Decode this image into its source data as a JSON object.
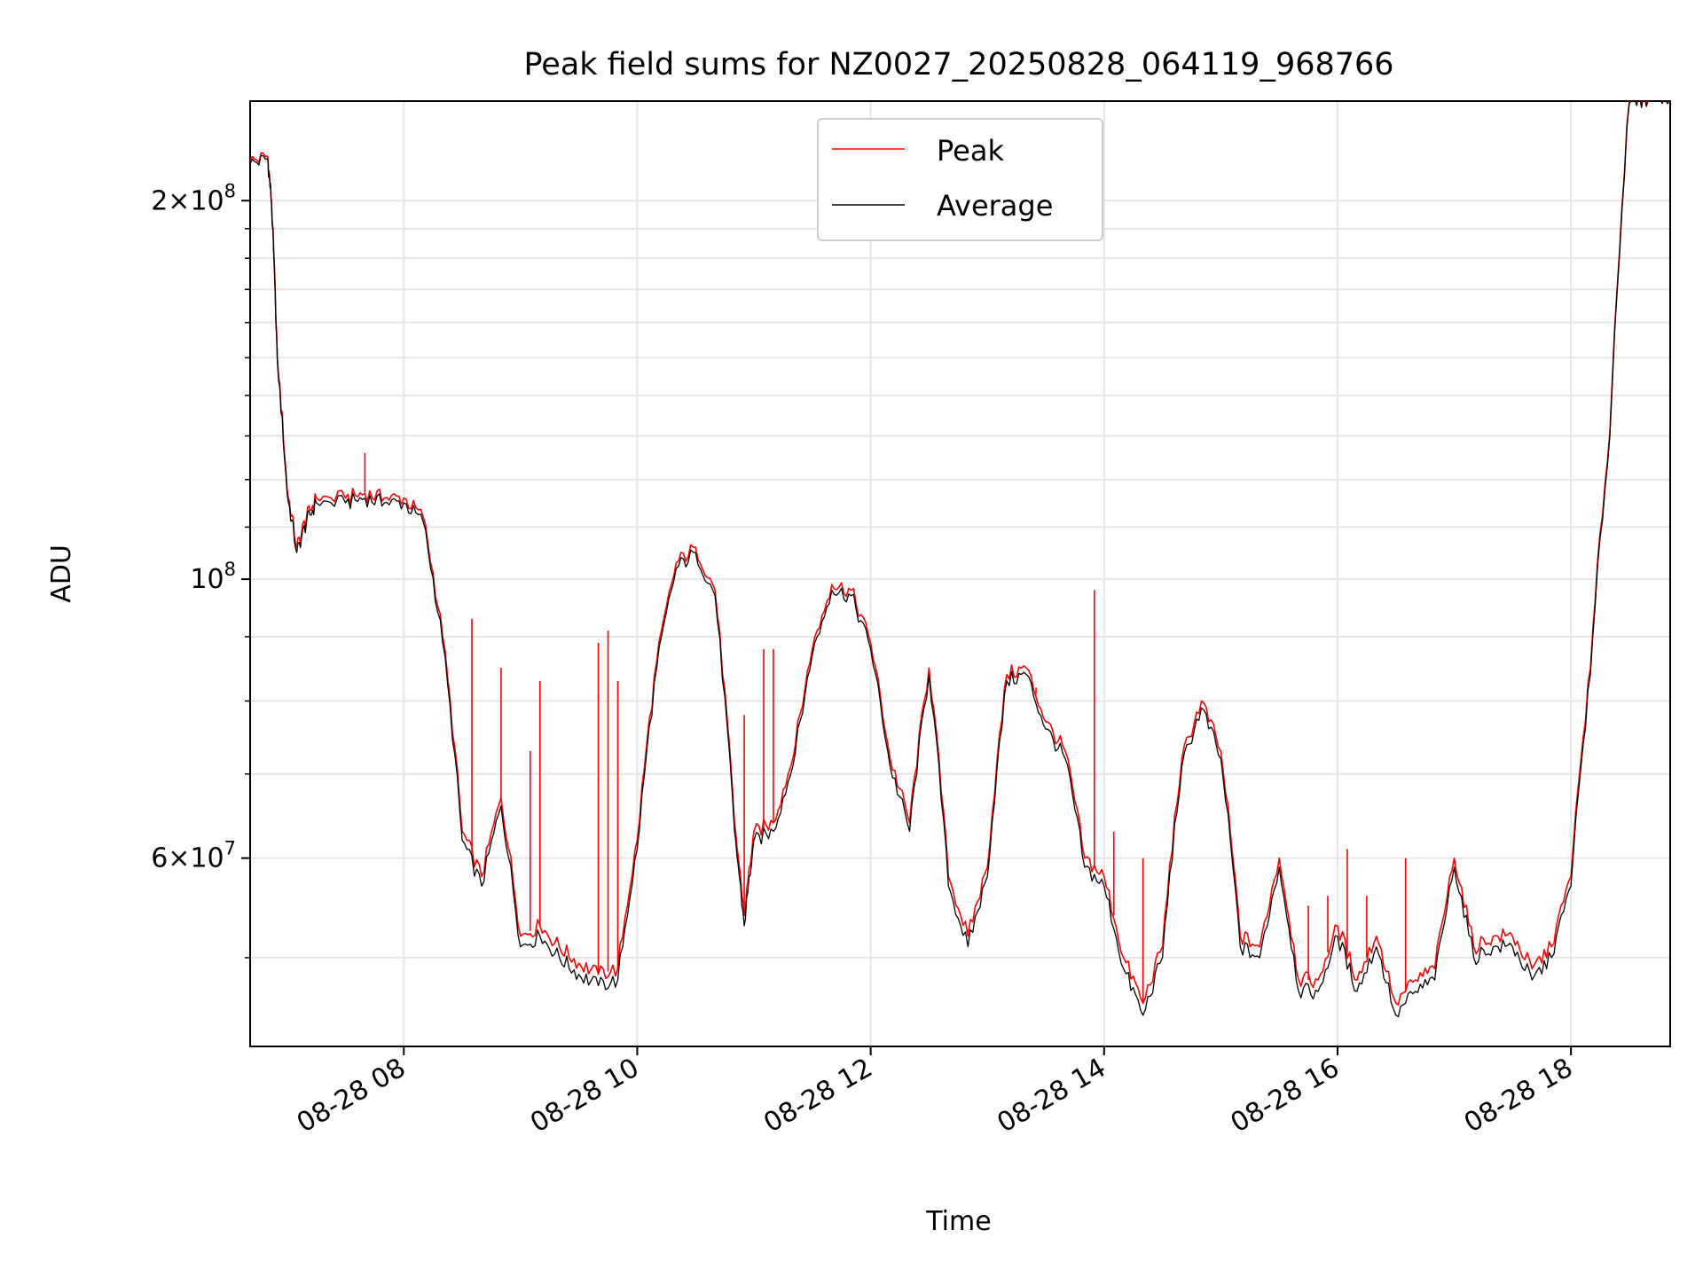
{
  "chart_data": {
    "type": "line",
    "title": "Peak field sums for NZ0027_20250828_064119_968766",
    "xlabel": "Time",
    "ylabel": "ADU",
    "yscale": "log",
    "ylim": [
      42500000,
      240000000
    ],
    "xlim": [
      "2025-08-28 06:41",
      "2025-08-28 18:51"
    ],
    "x_ticks": [
      "08-28 08",
      "08-28 10",
      "08-28 12",
      "08-28 14",
      "08-28 16",
      "08-28 18"
    ],
    "y_ticks": [
      "2×10^8",
      "10^8",
      "6×10^7"
    ],
    "grid": true,
    "legend": "upper center",
    "series": [
      {
        "name": "Peak",
        "color": "#ff0000",
        "x": [
          "06:41",
          "06:50",
          "06:52",
          "06:55",
          "07:00",
          "07:05",
          "07:10",
          "07:15",
          "07:30",
          "07:40",
          "07:50",
          "08:00",
          "08:10",
          "08:20",
          "08:30",
          "08:40",
          "08:50",
          "09:00",
          "09:10",
          "09:20",
          "09:30",
          "09:40",
          "09:50",
          "10:00",
          "10:10",
          "10:20",
          "10:30",
          "10:40",
          "10:50",
          "10:55",
          "11:00",
          "11:10",
          "11:20",
          "11:30",
          "11:40",
          "11:50",
          "12:00",
          "12:10",
          "12:20",
          "12:30",
          "12:40",
          "12:50",
          "13:00",
          "13:10",
          "13:20",
          "13:30",
          "13:40",
          "13:50",
          "14:00",
          "14:10",
          "14:20",
          "14:30",
          "14:40",
          "14:50",
          "15:00",
          "15:10",
          "15:20",
          "15:30",
          "15:40",
          "15:50",
          "16:00",
          "16:10",
          "16:20",
          "16:30",
          "16:40",
          "16:50",
          "17:00",
          "17:10",
          "17:20",
          "17:30",
          "17:40",
          "17:50",
          "18:00",
          "18:10",
          "18:20",
          "18:30",
          "18:40",
          "18:51"
        ],
        "y": [
          215000000,
          217000000,
          200000000,
          150000000,
          118000000,
          106000000,
          112000000,
          116000000,
          116000000,
          117000000,
          116000000,
          116000000,
          112000000,
          90000000,
          63000000,
          58000000,
          67000000,
          52000000,
          53000000,
          51000000,
          49500000,
          48500000,
          49000000,
          62000000,
          86000000,
          103000000,
          106000000,
          98000000,
          64000000,
          54000000,
          63000000,
          64000000,
          72000000,
          88000000,
          99000000,
          98000000,
          89000000,
          72000000,
          64000000,
          85000000,
          58000000,
          52000000,
          59000000,
          84000000,
          85000000,
          77000000,
          73000000,
          60000000,
          58000000,
          50000000,
          46000000,
          51000000,
          72000000,
          80000000,
          73000000,
          52000000,
          51000000,
          60000000,
          48000000,
          48000000,
          53000000,
          48000000,
          52000000,
          46000000,
          48000000,
          49000000,
          60000000,
          51000000,
          52000000,
          52000000,
          49000000,
          51000000,
          58000000,
          85000000,
          131000000,
          240000000,
          242000000,
          242000000
        ],
        "spikes": [
          [
            "07:40",
            126000000
          ],
          [
            "08:35",
            93000000
          ],
          [
            "08:50",
            85000000
          ],
          [
            "09:05",
            73000000
          ],
          [
            "09:10",
            83000000
          ],
          [
            "09:40",
            89000000
          ],
          [
            "09:45",
            91000000
          ],
          [
            "09:50",
            83000000
          ],
          [
            "10:55",
            78000000
          ],
          [
            "11:05",
            88000000
          ],
          [
            "11:10",
            88000000
          ],
          [
            "13:25",
            82000000
          ],
          [
            "13:55",
            98000000
          ],
          [
            "14:05",
            63000000
          ],
          [
            "14:20",
            60000000
          ],
          [
            "15:45",
            55000000
          ],
          [
            "15:55",
            56000000
          ],
          [
            "16:05",
            61000000
          ],
          [
            "16:15",
            56000000
          ],
          [
            "16:35",
            60000000
          ]
        ]
      },
      {
        "name": "Average",
        "color": "#000000",
        "x": [
          "06:41",
          "06:50",
          "06:52",
          "06:55",
          "07:00",
          "07:05",
          "07:10",
          "07:15",
          "07:30",
          "07:40",
          "07:50",
          "08:00",
          "08:10",
          "08:20",
          "08:30",
          "08:40",
          "08:50",
          "09:00",
          "09:10",
          "09:20",
          "09:30",
          "09:40",
          "09:50",
          "10:00",
          "10:10",
          "10:20",
          "10:30",
          "10:40",
          "10:50",
          "10:55",
          "11:00",
          "11:10",
          "11:20",
          "11:30",
          "11:40",
          "11:50",
          "12:00",
          "12:10",
          "12:20",
          "12:30",
          "12:40",
          "12:50",
          "13:00",
          "13:10",
          "13:20",
          "13:30",
          "13:40",
          "13:50",
          "14:00",
          "14:10",
          "14:20",
          "14:30",
          "14:40",
          "14:50",
          "15:00",
          "15:10",
          "15:20",
          "15:30",
          "15:40",
          "15:50",
          "16:00",
          "16:10",
          "16:20",
          "16:30",
          "16:40",
          "16:50",
          "17:00",
          "17:10",
          "17:20",
          "17:30",
          "17:40",
          "17:50",
          "18:00",
          "18:10",
          "18:20",
          "18:30",
          "18:40",
          "18:51"
        ],
        "y": [
          214000000,
          216000000,
          199000000,
          149000000,
          117000000,
          105000000,
          111000000,
          115000000,
          115000000,
          116000000,
          115000000,
          115000000,
          111000000,
          89000000,
          62000000,
          57000000,
          66000000,
          51000000,
          52000000,
          50000000,
          48500000,
          47500000,
          48000000,
          61000000,
          85000000,
          102000000,
          105000000,
          97000000,
          63000000,
          53000000,
          62000000,
          63000000,
          71000000,
          87000000,
          98000000,
          97000000,
          88000000,
          71000000,
          63000000,
          84000000,
          57000000,
          51000000,
          58000000,
          83000000,
          84000000,
          76000000,
          72000000,
          59000000,
          57000000,
          49000000,
          45000000,
          50000000,
          71000000,
          79000000,
          72000000,
          51000000,
          50000000,
          59000000,
          47000000,
          47000000,
          52000000,
          47000000,
          51000000,
          45000000,
          47000000,
          48000000,
          59000000,
          50000000,
          51000000,
          51000000,
          48000000,
          50000000,
          57000000,
          84000000,
          130000000,
          239000000,
          241000000,
          241000000
        ]
      }
    ]
  }
}
